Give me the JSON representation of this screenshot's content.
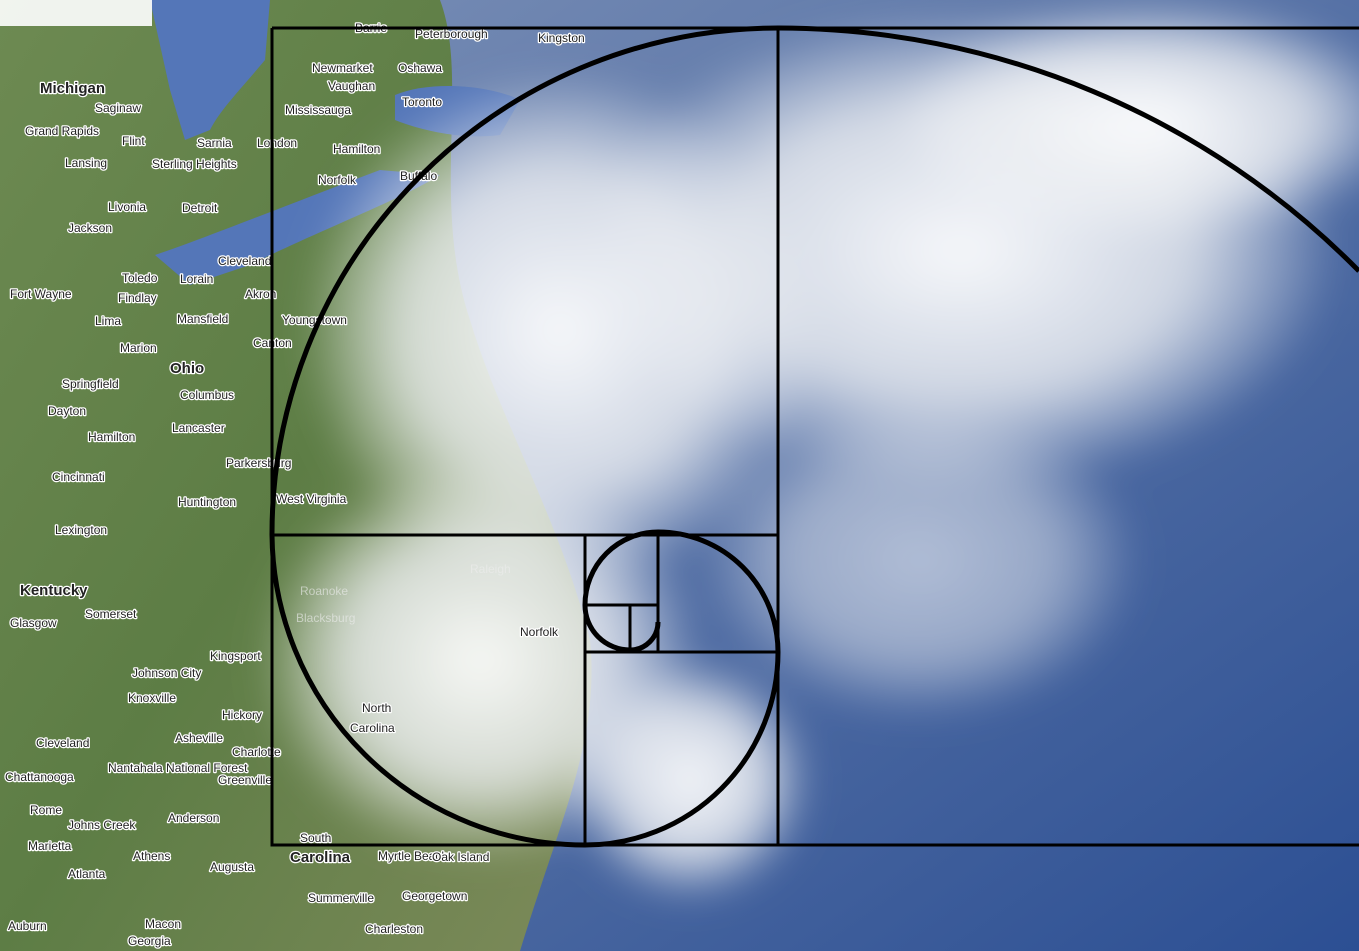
{
  "map": {
    "labels": [
      "Michigan",
      "Saginaw",
      "Grand Rapids",
      "Flint",
      "Lansing",
      "Sterling Heights",
      "Sarnia",
      "London",
      "Detroit",
      "Livonia",
      "Jackson",
      "Toledo",
      "Lorain",
      "Cleveland",
      "Fort Wayne",
      "Findlay",
      "Akron",
      "Lima",
      "Mansfield",
      "Youngstown",
      "Canton",
      "Marion",
      "Ohio",
      "Columbus",
      "Springfield",
      "Dayton",
      "Lancaster",
      "Hamilton",
      "Cincinnati",
      "Parkersburg",
      "Huntington",
      "West Virginia",
      "Lexington",
      "Kentucky",
      "Somerset",
      "Glasgow",
      "Kingsport",
      "Johnson City",
      "Knoxville",
      "Hickory",
      "Asheville",
      "Charlotte",
      "Cleveland",
      "Chattanooga",
      "Nantahala National Forest",
      "Greenville",
      "Rome",
      "Anderson",
      "Johns Creek",
      "Marietta",
      "Athens",
      "Augusta",
      "Atlanta",
      "Macon",
      "Georgia",
      "Auburn",
      "Summerville",
      "Georgetown",
      "Charleston",
      "Myrtle Beach",
      "Oak Island",
      "South",
      "Carolina",
      "North",
      "Carolina",
      "Norfolk",
      "Barrie",
      "Peterborough",
      "Kingston",
      "Newmarket",
      "Oshawa",
      "Vaughan",
      "Toronto",
      "Mississauga",
      "Hamilton",
      "Norfolk",
      "Buffalo",
      "Raleigh",
      "Roanoke",
      "Blacksburg"
    ]
  }
}
